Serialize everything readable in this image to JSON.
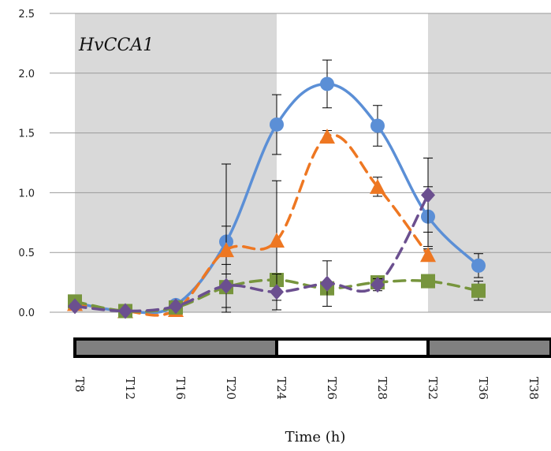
{
  "chart_data": {
    "type": "line",
    "annotation": "HvCCA1",
    "xlabel": "Time (h)",
    "ylabel": "",
    "ylim": [
      0,
      2.5
    ],
    "yticks": [
      "0.0",
      "0.5",
      "1.0",
      "1.5",
      "2.0",
      "2.5"
    ],
    "categories": [
      "T8",
      "T12",
      "T16",
      "T20",
      "T24",
      "T26",
      "T28",
      "T32",
      "T36",
      "T38"
    ],
    "shaded_regions": [
      [
        0,
        4
      ],
      [
        7,
        9.5
      ]
    ],
    "light_dark_bar": [
      {
        "state": "dark",
        "from": 0,
        "to": 4
      },
      {
        "state": "light",
        "from": 4,
        "to": 7
      },
      {
        "state": "dark",
        "from": 7,
        "to": 9.5
      }
    ],
    "grid": "horizontal",
    "series": [
      {
        "color": "#5b8fd6",
        "marker": "circle",
        "dash": "solid",
        "values": [
          0.08,
          0.01,
          0.06,
          0.59,
          1.57,
          1.91,
          1.56,
          0.8,
          0.39,
          null
        ],
        "errors": [
          0.02,
          0.01,
          0.03,
          0.65,
          0.25,
          0.2,
          0.17,
          0.25,
          0.1,
          null
        ]
      },
      {
        "color": "#ee7722",
        "marker": "triangle",
        "dash": "dashed",
        "values": [
          0.07,
          0.01,
          0.02,
          0.52,
          0.6,
          1.47,
          1.05,
          0.48,
          null,
          null
        ],
        "errors": [
          0.02,
          0.01,
          0.02,
          0.2,
          0.5,
          0.05,
          0.08,
          0.05,
          null,
          null
        ]
      },
      {
        "color": "#77953d",
        "marker": "square",
        "dash": "dashed",
        "values": [
          0.09,
          0.01,
          0.04,
          0.21,
          0.27,
          0.2,
          0.25,
          0.26,
          0.18,
          null
        ],
        "errors": [
          0.02,
          0.01,
          0.02,
          0.05,
          0.05,
          0.05,
          0.05,
          0.05,
          0.08,
          null
        ]
      },
      {
        "color": "#6b4f8f",
        "marker": "diamond",
        "dash": "dashed",
        "values": [
          0.05,
          0.01,
          0.05,
          0.22,
          0.17,
          0.24,
          0.23,
          0.98,
          null,
          null
        ],
        "errors": [
          0.02,
          0.01,
          0.02,
          0.18,
          0.15,
          0.19,
          0.05,
          0.31,
          null,
          null
        ]
      }
    ]
  }
}
